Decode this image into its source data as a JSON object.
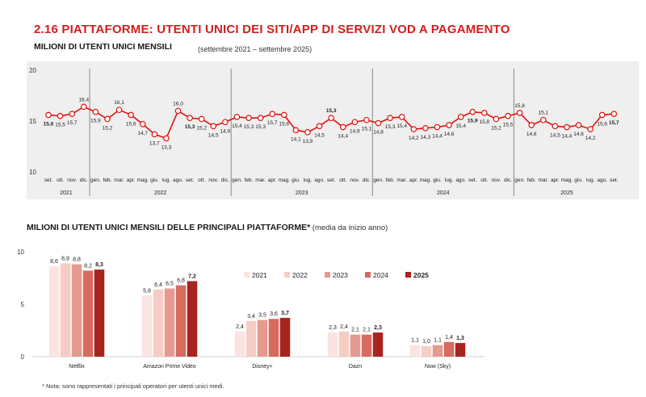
{
  "title": "2.16 PIATTAFORME: UTENTI UNICI DEI SITI/APP DI SERVIZI VOD A PAGAMENTO",
  "top_chart_title": "MILIONI DI UTENTI UNICI MENSILI",
  "top_chart_note": "(settembre 2021 – settembre 2025)",
  "bottom_chart_title": "MILIONI DI UTENTI UNICI MENSILI DELLE PRINCIPALI PIATTAFORME*",
  "bottom_chart_note": " (media da inizio anno)",
  "footnote": "* Nota: sono rappresentati i principali operatori per utenti unici medi.",
  "colors": {
    "accent": "#d21e1e",
    "line": "#e3120b",
    "panel": "#efefef"
  },
  "chart_data": [
    {
      "type": "line",
      "ylim": [
        10,
        20
      ],
      "yticks": [
        "10",
        "15",
        "20"
      ],
      "months": [
        "set.",
        "ott.",
        "nov.",
        "dic.",
        "gen.",
        "feb.",
        "mar.",
        "apr.",
        "mag.",
        "giu.",
        "lug.",
        "ago.",
        "set.",
        "ott.",
        "nov.",
        "dic.",
        "gen.",
        "feb.",
        "mar.",
        "apr.",
        "mag.",
        "giu.",
        "lug.",
        "ago.",
        "set.",
        "ott.",
        "nov.",
        "dic.",
        "gen.",
        "feb.",
        "mar.",
        "apr.",
        "mag.",
        "giu.",
        "lug.",
        "ago.",
        "set.",
        "ott.",
        "nov.",
        "dic.",
        "gen.",
        "feb.",
        "mar.",
        "apr.",
        "mag.",
        "giu.",
        "lug.",
        "ago.",
        "set."
      ],
      "years": [
        {
          "label": "2021",
          "start": 0,
          "count": 4
        },
        {
          "label": "2022",
          "start": 4,
          "count": 12
        },
        {
          "label": "2023",
          "start": 16,
          "count": 12
        },
        {
          "label": "2024",
          "start": 28,
          "count": 12
        },
        {
          "label": "2025",
          "start": 40,
          "count": 9
        }
      ],
      "values": [
        15.6,
        15.5,
        15.7,
        16.4,
        15.9,
        15.2,
        16.1,
        15.6,
        14.7,
        13.7,
        13.3,
        16.0,
        15.3,
        15.2,
        14.5,
        14.9,
        15.4,
        15.3,
        15.3,
        15.7,
        15.6,
        14.1,
        13.9,
        14.5,
        15.3,
        14.4,
        14.9,
        15.1,
        14.8,
        15.3,
        15.4,
        14.2,
        14.3,
        14.4,
        14.6,
        15.4,
        15.9,
        15.8,
        15.2,
        15.5,
        15.8,
        14.6,
        15.1,
        14.5,
        14.4,
        14.6,
        14.2,
        15.6,
        15.7
      ],
      "labels": [
        "15,6",
        "15,5",
        "15,7",
        "16,4",
        "15,9",
        "15,2",
        "16,1",
        "15,6",
        "14,7",
        "13,7",
        "13,3",
        "16,0",
        "15,3",
        "15,2",
        "14,5",
        "14,9",
        "15,4",
        "15,3",
        "15,3",
        "15,7",
        "15,6",
        "14,1",
        "13,9",
        "14,5",
        "15,3",
        "14,4",
        "14,9",
        "15,1",
        "14,8",
        "15,3",
        "15,4",
        "14,2",
        "14,3",
        "14,4",
        "14,6",
        "15,4",
        "15,9",
        "15,8",
        "15,2",
        "15,5",
        "15,8",
        "14,6",
        "15,1",
        "14,5",
        "14,4",
        "14,6",
        "14,2",
        "15,6",
        "15,7"
      ],
      "bold_labels": [
        0,
        12,
        24,
        36,
        48
      ]
    },
    {
      "type": "bar",
      "ylim": [
        0,
        10
      ],
      "yticks": [
        "0",
        "5",
        "10"
      ],
      "categories": [
        "Netflix",
        "Amazon Prime Video",
        "Disney+",
        "Dazn",
        "Now (Sky)"
      ],
      "series": [
        {
          "name": "2021",
          "color": "#fbe3e1",
          "values": [
            8.6,
            5.8,
            2.4,
            2.3,
            1.1
          ],
          "labels": [
            "8,6",
            "5,8",
            "2,4",
            "2,3",
            "1,1"
          ]
        },
        {
          "name": "2022",
          "color": "#f5cdc4",
          "values": [
            8.9,
            6.4,
            3.4,
            2.4,
            1.0
          ],
          "labels": [
            "8,9",
            "6,4",
            "3,4",
            "2,4",
            "1,0"
          ]
        },
        {
          "name": "2023",
          "color": "#e6998f",
          "values": [
            8.8,
            6.5,
            3.5,
            2.1,
            1.1
          ],
          "labels": [
            "8,8",
            "6,5",
            "3,5",
            "2,1",
            "1,1"
          ]
        },
        {
          "name": "2024",
          "color": "#d86a60",
          "values": [
            8.2,
            6.8,
            3.6,
            2.1,
            1.4
          ],
          "labels": [
            "8,2",
            "6,8",
            "3,6",
            "2,1",
            "1,4"
          ]
        },
        {
          "name": "2025",
          "color": "#a8241f",
          "values": [
            8.3,
            7.2,
            3.7,
            2.3,
            1.3
          ],
          "labels": [
            "8,3",
            "7,2",
            "3,7",
            "2,3",
            "1,3"
          ]
        }
      ]
    }
  ]
}
